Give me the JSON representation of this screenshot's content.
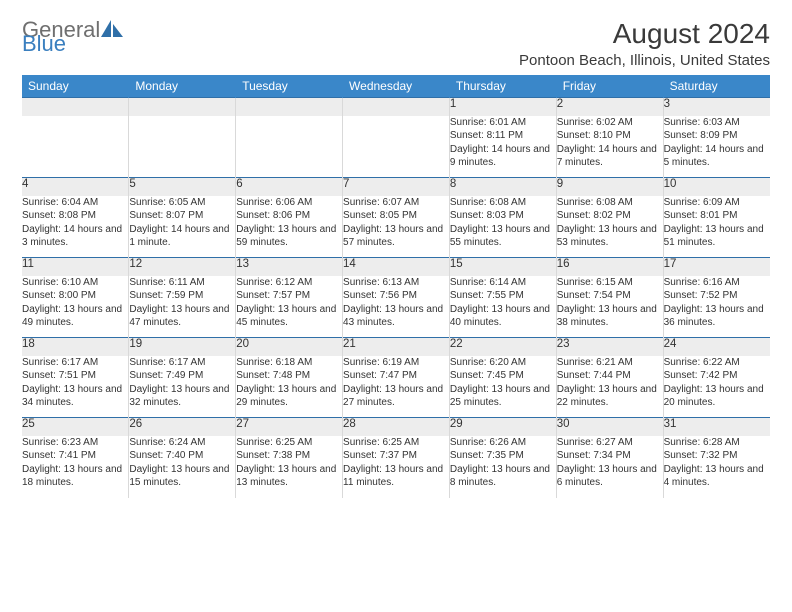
{
  "logo": {
    "text_general": "General",
    "text_blue": "Blue",
    "shape_color": "#2f6fa8"
  },
  "header": {
    "title": "August 2024",
    "location": "Pontoon Beach, Illinois, United States"
  },
  "style": {
    "header_bg": "#3a87c9",
    "header_text": "#ffffff",
    "daynum_bg": "#ededed",
    "row_divider": "#2f6fa8",
    "cell_border": "#d9d9d9",
    "body_text": "#333333",
    "month_start_weekday": 4
  },
  "weekdays": [
    "Sunday",
    "Monday",
    "Tuesday",
    "Wednesday",
    "Thursday",
    "Friday",
    "Saturday"
  ],
  "days": [
    {
      "n": 1,
      "sunrise": "6:01 AM",
      "sunset": "8:11 PM",
      "daylight": "14 hours and 9 minutes."
    },
    {
      "n": 2,
      "sunrise": "6:02 AM",
      "sunset": "8:10 PM",
      "daylight": "14 hours and 7 minutes."
    },
    {
      "n": 3,
      "sunrise": "6:03 AM",
      "sunset": "8:09 PM",
      "daylight": "14 hours and 5 minutes."
    },
    {
      "n": 4,
      "sunrise": "6:04 AM",
      "sunset": "8:08 PM",
      "daylight": "14 hours and 3 minutes."
    },
    {
      "n": 5,
      "sunrise": "6:05 AM",
      "sunset": "8:07 PM",
      "daylight": "14 hours and 1 minute."
    },
    {
      "n": 6,
      "sunrise": "6:06 AM",
      "sunset": "8:06 PM",
      "daylight": "13 hours and 59 minutes."
    },
    {
      "n": 7,
      "sunrise": "6:07 AM",
      "sunset": "8:05 PM",
      "daylight": "13 hours and 57 minutes."
    },
    {
      "n": 8,
      "sunrise": "6:08 AM",
      "sunset": "8:03 PM",
      "daylight": "13 hours and 55 minutes."
    },
    {
      "n": 9,
      "sunrise": "6:08 AM",
      "sunset": "8:02 PM",
      "daylight": "13 hours and 53 minutes."
    },
    {
      "n": 10,
      "sunrise": "6:09 AM",
      "sunset": "8:01 PM",
      "daylight": "13 hours and 51 minutes."
    },
    {
      "n": 11,
      "sunrise": "6:10 AM",
      "sunset": "8:00 PM",
      "daylight": "13 hours and 49 minutes."
    },
    {
      "n": 12,
      "sunrise": "6:11 AM",
      "sunset": "7:59 PM",
      "daylight": "13 hours and 47 minutes."
    },
    {
      "n": 13,
      "sunrise": "6:12 AM",
      "sunset": "7:57 PM",
      "daylight": "13 hours and 45 minutes."
    },
    {
      "n": 14,
      "sunrise": "6:13 AM",
      "sunset": "7:56 PM",
      "daylight": "13 hours and 43 minutes."
    },
    {
      "n": 15,
      "sunrise": "6:14 AM",
      "sunset": "7:55 PM",
      "daylight": "13 hours and 40 minutes."
    },
    {
      "n": 16,
      "sunrise": "6:15 AM",
      "sunset": "7:54 PM",
      "daylight": "13 hours and 38 minutes."
    },
    {
      "n": 17,
      "sunrise": "6:16 AM",
      "sunset": "7:52 PM",
      "daylight": "13 hours and 36 minutes."
    },
    {
      "n": 18,
      "sunrise": "6:17 AM",
      "sunset": "7:51 PM",
      "daylight": "13 hours and 34 minutes."
    },
    {
      "n": 19,
      "sunrise": "6:17 AM",
      "sunset": "7:49 PM",
      "daylight": "13 hours and 32 minutes."
    },
    {
      "n": 20,
      "sunrise": "6:18 AM",
      "sunset": "7:48 PM",
      "daylight": "13 hours and 29 minutes."
    },
    {
      "n": 21,
      "sunrise": "6:19 AM",
      "sunset": "7:47 PM",
      "daylight": "13 hours and 27 minutes."
    },
    {
      "n": 22,
      "sunrise": "6:20 AM",
      "sunset": "7:45 PM",
      "daylight": "13 hours and 25 minutes."
    },
    {
      "n": 23,
      "sunrise": "6:21 AM",
      "sunset": "7:44 PM",
      "daylight": "13 hours and 22 minutes."
    },
    {
      "n": 24,
      "sunrise": "6:22 AM",
      "sunset": "7:42 PM",
      "daylight": "13 hours and 20 minutes."
    },
    {
      "n": 25,
      "sunrise": "6:23 AM",
      "sunset": "7:41 PM",
      "daylight": "13 hours and 18 minutes."
    },
    {
      "n": 26,
      "sunrise": "6:24 AM",
      "sunset": "7:40 PM",
      "daylight": "13 hours and 15 minutes."
    },
    {
      "n": 27,
      "sunrise": "6:25 AM",
      "sunset": "7:38 PM",
      "daylight": "13 hours and 13 minutes."
    },
    {
      "n": 28,
      "sunrise": "6:25 AM",
      "sunset": "7:37 PM",
      "daylight": "13 hours and 11 minutes."
    },
    {
      "n": 29,
      "sunrise": "6:26 AM",
      "sunset": "7:35 PM",
      "daylight": "13 hours and 8 minutes."
    },
    {
      "n": 30,
      "sunrise": "6:27 AM",
      "sunset": "7:34 PM",
      "daylight": "13 hours and 6 minutes."
    },
    {
      "n": 31,
      "sunrise": "6:28 AM",
      "sunset": "7:32 PM",
      "daylight": "13 hours and 4 minutes."
    }
  ],
  "labels": {
    "sunrise": "Sunrise:",
    "sunset": "Sunset:",
    "daylight": "Daylight:"
  }
}
